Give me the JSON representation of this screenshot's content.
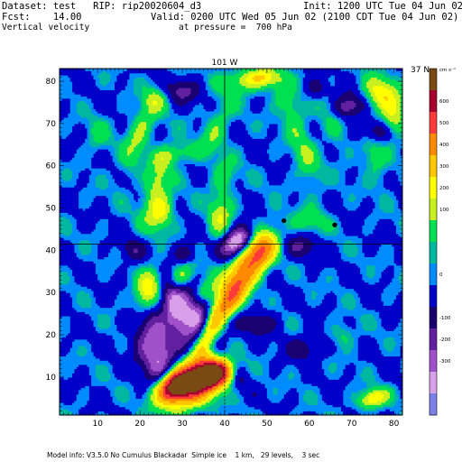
{
  "header": {
    "dataset_line": "Dataset: test   RIP: rip20020604_d3",
    "fcst_line": "Fcst:    14.00",
    "field_name": "Vertical velocity",
    "init": "Init: 1200 UTC Tue 04 Jun 02",
    "valid": "Valid: 0200 UTC Wed 05 Jun 02 (2100 CDT Tue 04 Jun 02)",
    "pressure": "at pressure =  700 hPa"
  },
  "chart_data": {
    "type": "heatmap",
    "title": "",
    "xlabel": "",
    "ylabel": "",
    "xlim": [
      1,
      82
    ],
    "ylim": [
      1,
      83
    ],
    "x_ticks": [
      10,
      20,
      30,
      40,
      50,
      60,
      70,
      80
    ],
    "y_ticks": [
      10,
      20,
      30,
      40,
      50,
      60,
      70,
      80
    ],
    "grid": false,
    "annotations": {
      "top_center": "101 W",
      "top_right": "37 N",
      "colorbar_units": "cm s⁻¹"
    },
    "reference_lines": {
      "vertical_x": 40,
      "horizontal_y": 41.5
    },
    "markers": [
      {
        "x": 54,
        "y": 47
      },
      {
        "x": 66,
        "y": 46
      }
    ],
    "colorbar": {
      "labels": [
        "600",
        "500",
        "400",
        "300",
        "200",
        "100",
        "0",
        "-100",
        "-200",
        "-300"
      ],
      "colors": [
        "#7a4a14",
        "#a8002e",
        "#ff3a3a",
        "#ff8a00",
        "#ffc800",
        "#ffff00",
        "#c8f020",
        "#00e050",
        "#00b8a0",
        "#008cff",
        "#0000c8",
        "#1a0070",
        "#6020a0",
        "#a050c8",
        "#d8a0e8",
        "#7a80e8"
      ]
    },
    "background_value": 0,
    "features": [
      {
        "x": 33,
        "y": 9,
        "sx": 5,
        "sy": 3,
        "v": 640,
        "theta": 0.6
      },
      {
        "x": 28,
        "y": 8,
        "sx": 3,
        "sy": 2,
        "v": 520,
        "theta": 0.6
      },
      {
        "x": 38,
        "y": 11,
        "sx": 3,
        "sy": 2,
        "v": 560,
        "theta": 0.3
      },
      {
        "x": 36,
        "y": 20,
        "sx": 5,
        "sy": 1.7,
        "v": 300,
        "theta": 1.2
      },
      {
        "x": 41,
        "y": 28,
        "sx": 4.5,
        "sy": 1.7,
        "v": 260,
        "theta": 1.0
      },
      {
        "x": 45,
        "y": 36,
        "sx": 6,
        "sy": 2.5,
        "v": 340,
        "theta": 1.0
      },
      {
        "x": 49,
        "y": 40,
        "sx": 3,
        "sy": 2,
        "v": 220,
        "theta": 1.0
      },
      {
        "x": 22,
        "y": 31,
        "sx": 4,
        "sy": 2,
        "v": 190,
        "theta": 1.2
      },
      {
        "x": 30,
        "y": 34,
        "sx": 3,
        "sy": 2,
        "v": 160,
        "theta": 0.9
      },
      {
        "x": 35,
        "y": 30,
        "sx": 2.5,
        "sy": 2,
        "v": 150,
        "theta": 0.9
      },
      {
        "x": 43,
        "y": 42,
        "sx": 3,
        "sy": 2,
        "v": -300,
        "theta": 0.8
      },
      {
        "x": 34,
        "y": 24,
        "sx": 3,
        "sy": 6,
        "v": -240,
        "theta": 0.4
      },
      {
        "x": 24,
        "y": 16,
        "sx": 3,
        "sy": 6,
        "v": -230,
        "theta": 0.3
      },
      {
        "x": 28,
        "y": 27,
        "sx": 2,
        "sy": 5,
        "v": -200,
        "theta": 0.3
      },
      {
        "x": 42,
        "y": 12,
        "sx": 2,
        "sy": 3,
        "v": -140,
        "theta": 0.5
      },
      {
        "x": 20,
        "y": 68,
        "sx": 2,
        "sy": 7,
        "v": 110,
        "theta": -0.35
      },
      {
        "x": 24,
        "y": 56,
        "sx": 2,
        "sy": 6,
        "v": 120,
        "theta": -0.3
      },
      {
        "x": 25,
        "y": 49,
        "sx": 2,
        "sy": 3,
        "v": 160,
        "theta": -0.3
      },
      {
        "x": 39,
        "y": 48,
        "sx": 2,
        "sy": 4,
        "v": 130,
        "theta": 0.0
      },
      {
        "x": 29,
        "y": 63,
        "sx": 4,
        "sy": 1.5,
        "v": 90,
        "theta": 0.2
      },
      {
        "x": 38,
        "y": 69,
        "sx": 2,
        "sy": 5,
        "v": 90,
        "theta": -0.4
      },
      {
        "x": 40,
        "y": 58,
        "sx": 2,
        "sy": 3,
        "v": 80,
        "theta": 0.0
      },
      {
        "x": 44,
        "y": 80,
        "sx": 4,
        "sy": 2,
        "v": 110,
        "theta": 0.0
      },
      {
        "x": 49,
        "y": 81,
        "sx": 3,
        "sy": 1.5,
        "v": 150,
        "theta": 0.0
      },
      {
        "x": 55,
        "y": 75,
        "sx": 2,
        "sy": 5,
        "v": 90,
        "theta": 0.5
      },
      {
        "x": 59,
        "y": 62,
        "sx": 2,
        "sy": 6,
        "v": 90,
        "theta": 0.3
      },
      {
        "x": 65,
        "y": 72,
        "sx": 2,
        "sy": 6,
        "v": 80,
        "theta": 0.4
      },
      {
        "x": 77,
        "y": 77,
        "sx": 3,
        "sy": 3,
        "v": 180,
        "theta": 0.0
      },
      {
        "x": 80,
        "y": 71,
        "sx": 2,
        "sy": 3,
        "v": 140,
        "theta": 0.0
      },
      {
        "x": 75,
        "y": 63,
        "sx": 2,
        "sy": 5,
        "v": 90,
        "theta": 0.3
      },
      {
        "x": 60,
        "y": 47,
        "sx": 3,
        "sy": 2,
        "v": 80,
        "theta": 0.0
      },
      {
        "x": 24,
        "y": 76,
        "sx": 2,
        "sy": 2,
        "v": 80,
        "theta": 0.0
      },
      {
        "x": 69,
        "y": 74,
        "sx": 3,
        "sy": 2,
        "v": -160,
        "theta": 0.3
      },
      {
        "x": 75,
        "y": 68,
        "sx": 3,
        "sy": 2,
        "v": -130,
        "theta": 0.0
      },
      {
        "x": 62,
        "y": 78,
        "sx": 2,
        "sy": 2,
        "v": -110,
        "theta": 0.0
      },
      {
        "x": 30,
        "y": 78,
        "sx": 3,
        "sy": 2,
        "v": -110,
        "theta": 0.0
      },
      {
        "x": 31,
        "y": 39,
        "sx": 2,
        "sy": 2,
        "v": -100,
        "theta": 0.0
      },
      {
        "x": 48,
        "y": 23,
        "sx": 3,
        "sy": 2,
        "v": -100,
        "theta": 0.0
      },
      {
        "x": 59,
        "y": 17,
        "sx": 3,
        "sy": 2,
        "v": -90,
        "theta": 0.0
      },
      {
        "x": 58,
        "y": 41,
        "sx": 3,
        "sy": 2,
        "v": -90,
        "theta": 0.0
      },
      {
        "x": 18,
        "y": 40,
        "sx": 2,
        "sy": 2,
        "v": -80,
        "theta": 0.0
      },
      {
        "x": 75,
        "y": 5,
        "sx": 2.5,
        "sy": 1.5,
        "v": 200,
        "theta": 0.3
      },
      {
        "x": 68,
        "y": 20,
        "sx": 2,
        "sy": 2,
        "v": 70,
        "theta": 0.0
      },
      {
        "x": 10,
        "y": 67,
        "sx": 2,
        "sy": 3,
        "v": 60,
        "theta": 0.0
      }
    ]
  },
  "footer": "Model info: V3.5.0 No Cumulus Blackadar  Simple ice    1 km,   29 levels,    3 sec"
}
